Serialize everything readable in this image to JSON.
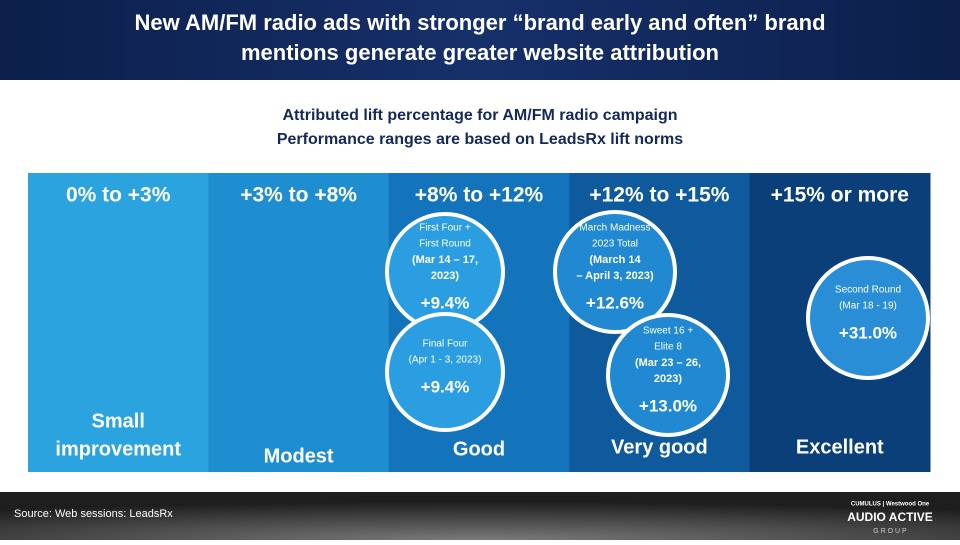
{
  "header": {
    "title_lines": [
      "New AM/FM radio ads with stronger “brand early and often” brand",
      "mentions generate greater website attribution"
    ]
  },
  "subtitle_lines": [
    "Attributed lift percentage for AM/FM radio campaign",
    "Performance ranges are based on LeadsRx lift norms"
  ],
  "columns": [
    {
      "range": "0% to +3%",
      "label_lines": [
        "Small",
        "improvement"
      ]
    },
    {
      "range": "+3% to +8%",
      "label_lines": [
        "Modest"
      ]
    },
    {
      "range": "+8% to +12%",
      "label_lines": [
        "Good"
      ]
    },
    {
      "range": "+12% to +15%",
      "label_lines": [
        "Very good"
      ]
    },
    {
      "range": "+15% or more",
      "label_lines": [
        "Excellent"
      ]
    }
  ],
  "circles": [
    {
      "lines": [
        "First Four +",
        "First Round",
        "(Mar 14 – 17,",
        "2023)"
      ],
      "value": "+9.4%"
    },
    {
      "lines": [
        "Final Four",
        "(Apr 1 - 3, 2023)"
      ],
      "value": "+9.4%"
    },
    {
      "lines": [
        "March Madness",
        "2023 Total",
        "(March 14",
        "– April 3, 2023)"
      ],
      "value": "+12.6%"
    },
    {
      "lines": [
        "Sweet 16 +",
        "Elite 8",
        "(Mar 23 – 26,",
        "2023)"
      ],
      "value": "+13.0%"
    },
    {
      "lines": [
        "Second Round",
        "(Mar 18 - 19)"
      ],
      "value": "+31.0%"
    }
  ],
  "footer": {
    "source": "Source: Web sessions: LeadsRx",
    "logo_top": "CUMULUS | Westwood One",
    "logo_main": "AUDIO ACTIVE",
    "logo_sub": "G R O U P"
  }
}
